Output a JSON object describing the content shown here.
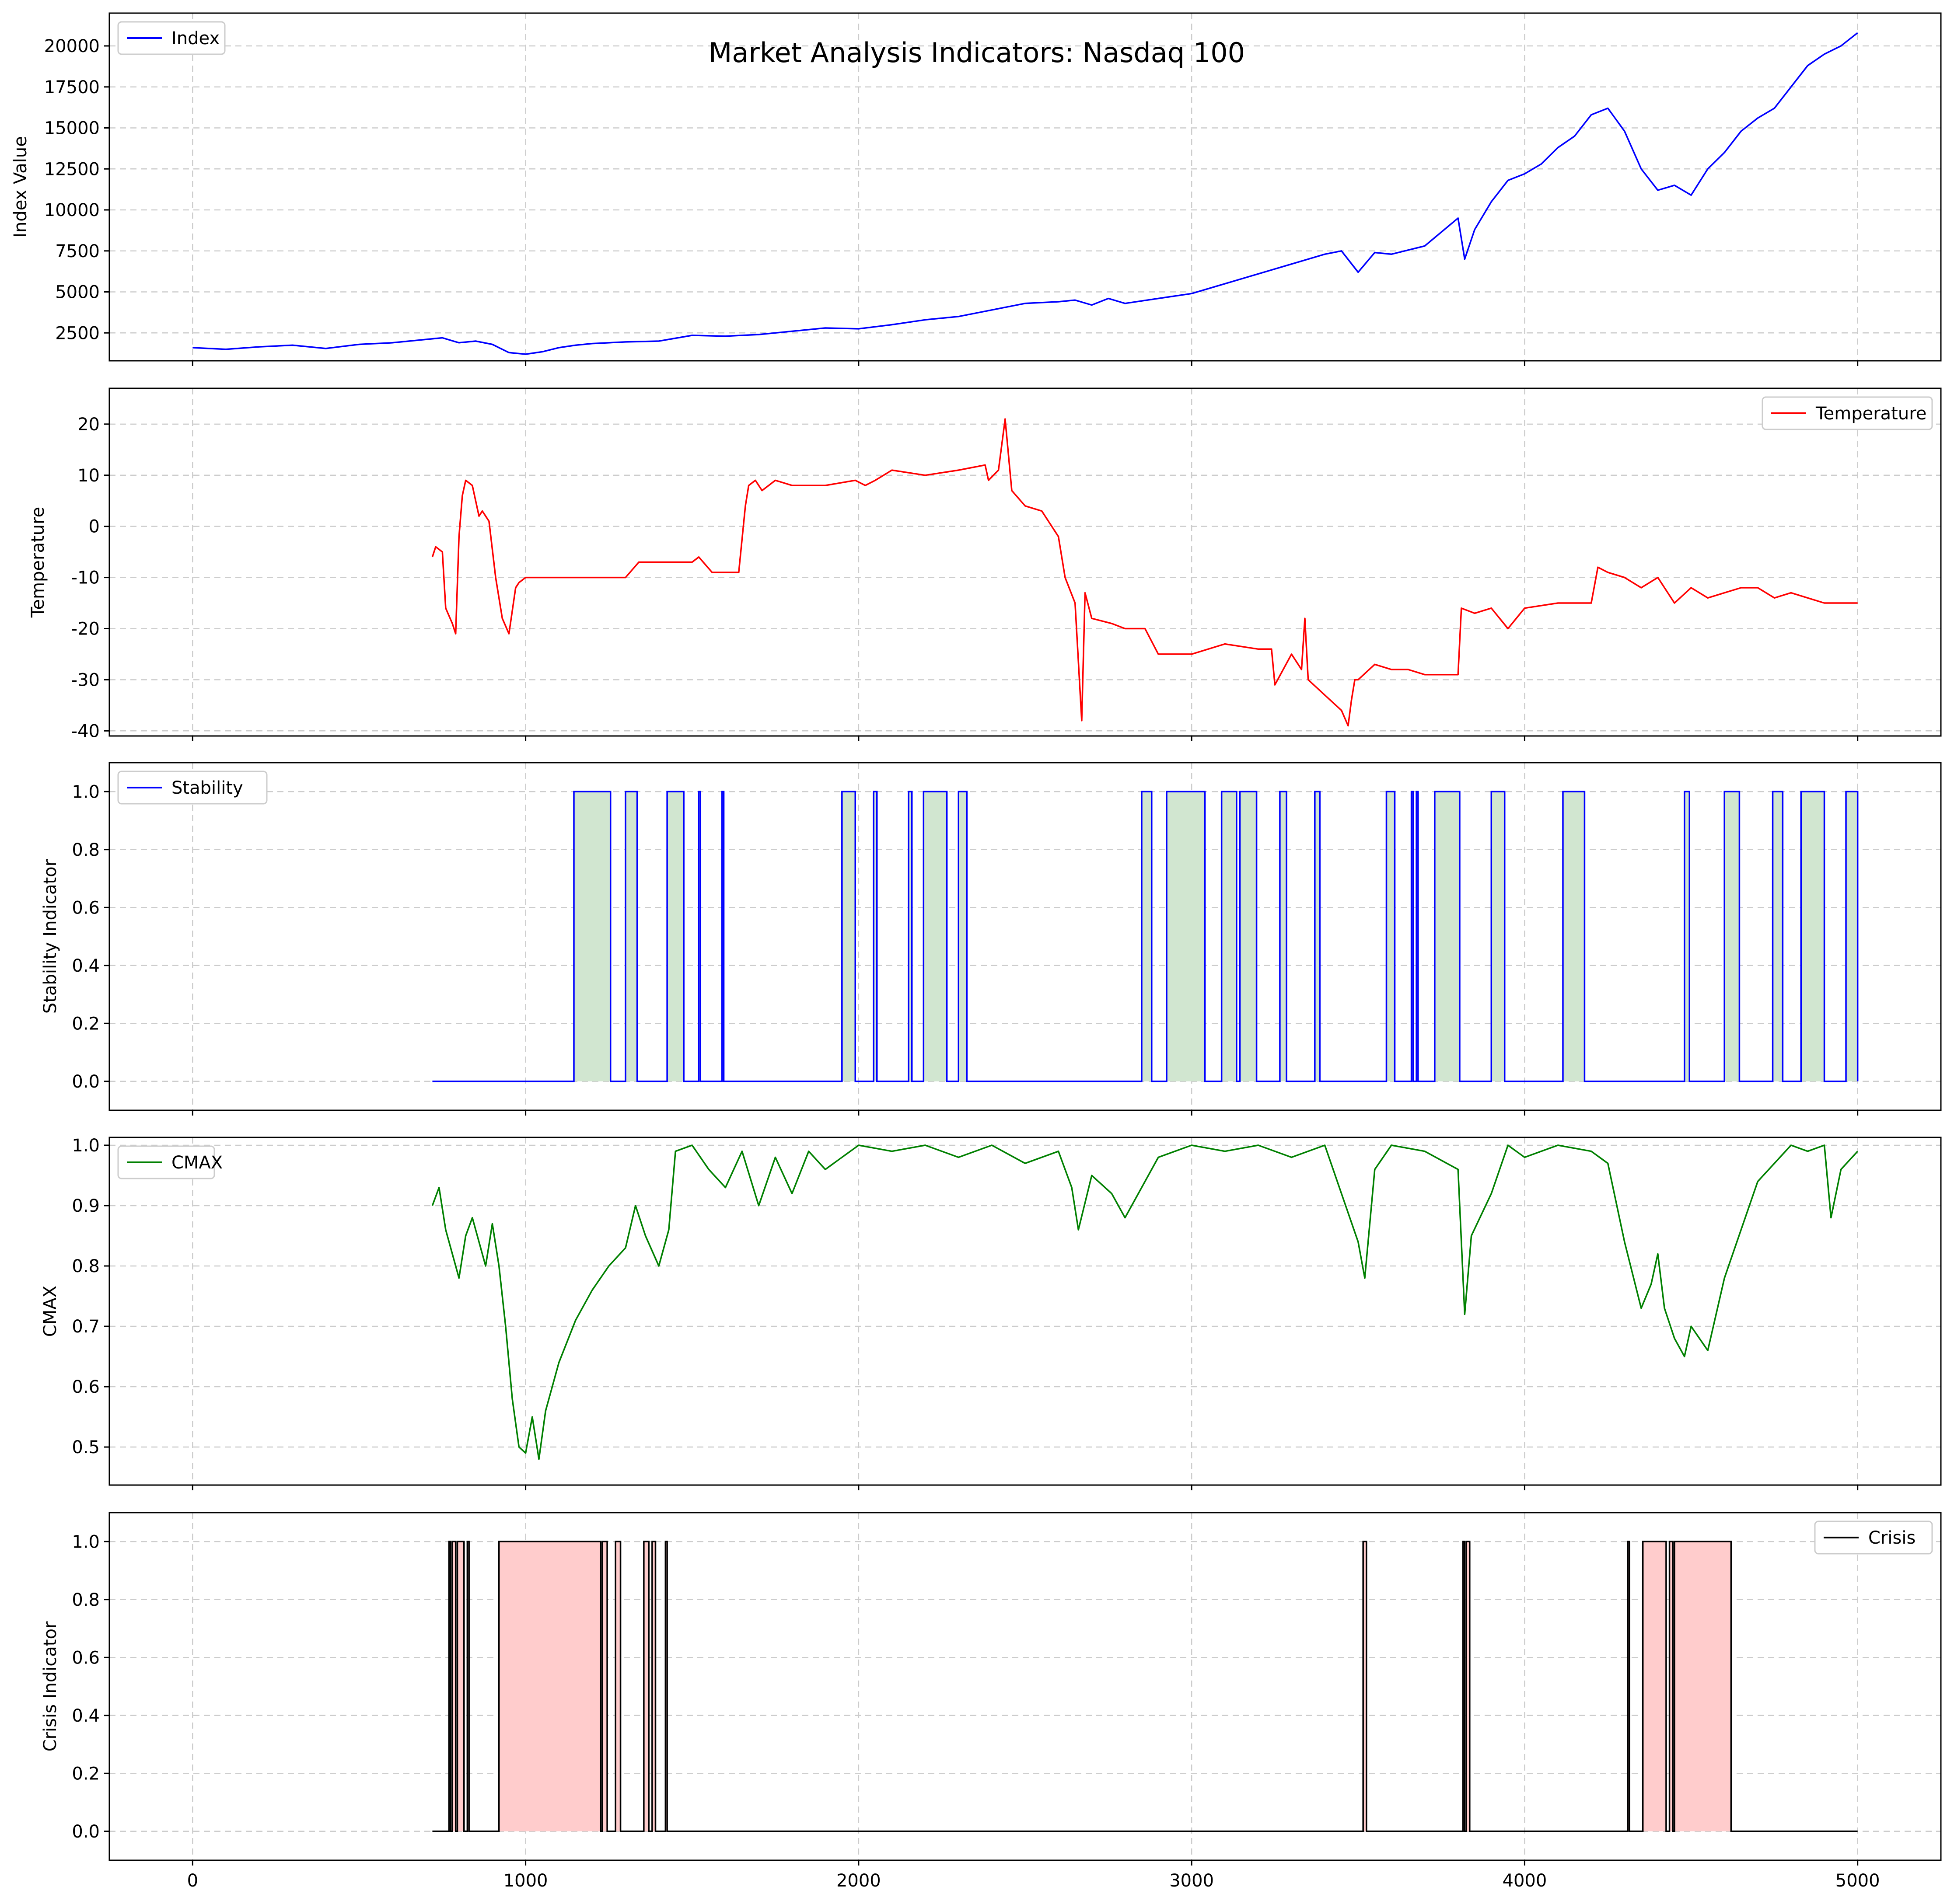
{
  "figure": {
    "title": "Market Analysis Indicators: Nasdaq 100"
  },
  "chart_data": [
    {
      "id": "index",
      "type": "line",
      "title": "Market Analysis Indicators: Nasdaq 100",
      "xlabel": "",
      "ylabel": "Index Value",
      "xlim": [
        -250,
        5250
      ],
      "ylim": [
        800,
        22000
      ],
      "xticks": [
        0,
        1000,
        2000,
        3000,
        4000,
        5000
      ],
      "yticks": [
        2500,
        5000,
        7500,
        10000,
        12500,
        15000,
        17500,
        20000
      ],
      "grid": true,
      "legend": "top-left",
      "series": [
        {
          "name": "Index",
          "color": "#0000ff",
          "x": [
            0,
            100,
            200,
            300,
            400,
            500,
            600,
            700,
            750,
            800,
            850,
            900,
            950,
            1000,
            1050,
            1100,
            1150,
            1200,
            1300,
            1400,
            1500,
            1600,
            1700,
            1800,
            1900,
            2000,
            2100,
            2200,
            2300,
            2400,
            2500,
            2600,
            2650,
            2700,
            2750,
            2800,
            2900,
            3000,
            3100,
            3200,
            3300,
            3400,
            3450,
            3500,
            3550,
            3600,
            3700,
            3800,
            3820,
            3850,
            3900,
            3950,
            4000,
            4050,
            4100,
            4150,
            4200,
            4250,
            4300,
            4350,
            4400,
            4450,
            4500,
            4550,
            4600,
            4650,
            4700,
            4750,
            4800,
            4850,
            4900,
            4950,
            5000
          ],
          "y": [
            1600,
            1500,
            1650,
            1750,
            1550,
            1800,
            1900,
            2100,
            2200,
            1900,
            2000,
            1800,
            1300,
            1200,
            1350,
            1600,
            1750,
            1850,
            1950,
            2000,
            2350,
            2300,
            2400,
            2600,
            2800,
            2750,
            3000,
            3300,
            3500,
            3900,
            4300,
            4400,
            4500,
            4200,
            4600,
            4300,
            4600,
            4900,
            5500,
            6100,
            6700,
            7300,
            7500,
            6200,
            7400,
            7300,
            7800,
            9500,
            7000,
            8800,
            10500,
            11800,
            12200,
            12800,
            13800,
            14500,
            15800,
            16200,
            14800,
            12500,
            11200,
            11500,
            10900,
            12500,
            13500,
            14800,
            15600,
            16200,
            17500,
            18800,
            19500,
            20000,
            20800
          ]
        }
      ]
    },
    {
      "id": "temperature",
      "type": "line",
      "xlabel": "",
      "ylabel": "Temperature",
      "xlim": [
        -250,
        5250
      ],
      "ylim": [
        -41,
        27
      ],
      "xticks": [
        0,
        1000,
        2000,
        3000,
        4000,
        5000
      ],
      "yticks": [
        -40,
        -30,
        -20,
        -10,
        0,
        10,
        20
      ],
      "grid": true,
      "legend": "top-right",
      "series": [
        {
          "name": "Temperature",
          "color": "#ff0000",
          "x": [
            720,
            730,
            750,
            760,
            780,
            790,
            800,
            810,
            820,
            840,
            860,
            870,
            890,
            910,
            930,
            950,
            970,
            980,
            1000,
            1050,
            1100,
            1200,
            1300,
            1340,
            1400,
            1500,
            1520,
            1560,
            1600,
            1640,
            1660,
            1670,
            1690,
            1710,
            1730,
            1750,
            1800,
            1900,
            1990,
            2020,
            2050,
            2100,
            2200,
            2300,
            2380,
            2390,
            2420,
            2440,
            2450,
            2460,
            2500,
            2550,
            2600,
            2620,
            2650,
            2670,
            2680,
            2700,
            2760,
            2800,
            2860,
            2900,
            2950,
            3000,
            3100,
            3200,
            3240,
            3250,
            3300,
            3330,
            3340,
            3350,
            3400,
            3450,
            3470,
            3480,
            3490,
            3500,
            3550,
            3600,
            3650,
            3700,
            3800,
            3810,
            3850,
            3900,
            3950,
            4000,
            4100,
            4200,
            4220,
            4250,
            4300,
            4350,
            4400,
            4450,
            4500,
            4550,
            4600,
            4650,
            4700,
            4750,
            4800,
            4850,
            4900,
            4950,
            5000
          ],
          "y": [
            -6,
            -4,
            -5,
            -16,
            -19,
            -21,
            -2,
            6,
            9,
            8,
            2,
            3,
            1,
            -10,
            -18,
            -21,
            -12,
            -11,
            -10,
            -10,
            -10,
            -10,
            -10,
            -7,
            -7,
            -7,
            -6,
            -9,
            -9,
            -9,
            4,
            8,
            9,
            7,
            8,
            9,
            8,
            8,
            9,
            8,
            9,
            11,
            10,
            11,
            12,
            9,
            11,
            21,
            14,
            7,
            4,
            3,
            -2,
            -10,
            -15,
            -38,
            -13,
            -18,
            -19,
            -20,
            -20,
            -25,
            -25,
            -25,
            -23,
            -24,
            -24,
            -31,
            -25,
            -28,
            -18,
            -30,
            -33,
            -36,
            -39,
            -34,
            -30,
            -30,
            -27,
            -28,
            -28,
            -29,
            -29,
            -16,
            -17,
            -16,
            -20,
            -16,
            -15,
            -15,
            -8,
            -9,
            -10,
            -12,
            -10,
            -15,
            -12,
            -14,
            -13,
            -12,
            -12,
            -14,
            -13,
            -14,
            -15,
            -15,
            -15
          ]
        }
      ]
    },
    {
      "id": "stability",
      "type": "area",
      "xlabel": "",
      "ylabel": "Stability Indicator",
      "xlim": [
        -250,
        5250
      ],
      "ylim": [
        -0.1,
        1.1
      ],
      "xticks": [
        0,
        1000,
        2000,
        3000,
        4000,
        5000
      ],
      "yticks": [
        0.0,
        0.2,
        0.4,
        0.6,
        0.8,
        1.0
      ],
      "grid": true,
      "legend": "top-left",
      "series": [
        {
          "name": "Stability",
          "color": "#0000ff",
          "fill": "#d1e6d0",
          "x_start": 720,
          "x_end": 5000,
          "intervals_on": [
            [
              1145,
              1255
            ],
            [
              1300,
              1335
            ],
            [
              1425,
              1475
            ],
            [
              1520,
              1525
            ],
            [
              1590,
              1595
            ],
            [
              1950,
              1990
            ],
            [
              2045,
              2055
            ],
            [
              2150,
              2160
            ],
            [
              2195,
              2265
            ],
            [
              2300,
              2325
            ],
            [
              2850,
              2880
            ],
            [
              2925,
              3040
            ],
            [
              3090,
              3135
            ],
            [
              3145,
              3195
            ],
            [
              3265,
              3285
            ],
            [
              3370,
              3385
            ],
            [
              3585,
              3610
            ],
            [
              3660,
              3665
            ],
            [
              3675,
              3680
            ],
            [
              3730,
              3805
            ],
            [
              3900,
              3940
            ],
            [
              4115,
              4180
            ],
            [
              4480,
              4495
            ],
            [
              4600,
              4645
            ],
            [
              4745,
              4775
            ],
            [
              4830,
              4900
            ],
            [
              4965,
              5000
            ]
          ]
        }
      ]
    },
    {
      "id": "cmax",
      "type": "line",
      "xlabel": "",
      "ylabel": "CMAX",
      "xlim": [
        -250,
        5250
      ],
      "ylim": [
        0.437,
        1.013
      ],
      "xticks": [
        0,
        1000,
        2000,
        3000,
        4000,
        5000
      ],
      "yticks": [
        0.5,
        0.6,
        0.7,
        0.8,
        0.9,
        1.0
      ],
      "grid": true,
      "legend": "top-left",
      "series": [
        {
          "name": "CMAX",
          "color": "#008000",
          "x": [
            720,
            740,
            760,
            780,
            800,
            820,
            840,
            860,
            880,
            900,
            920,
            940,
            960,
            980,
            1000,
            1020,
            1040,
            1060,
            1080,
            1100,
            1150,
            1200,
            1250,
            1300,
            1330,
            1360,
            1400,
            1430,
            1450,
            1500,
            1550,
            1600,
            1650,
            1700,
            1750,
            1800,
            1850,
            1900,
            1950,
            2000,
            2100,
            2200,
            2300,
            2400,
            2500,
            2600,
            2640,
            2660,
            2700,
            2760,
            2800,
            2900,
            3000,
            3100,
            3200,
            3300,
            3400,
            3450,
            3500,
            3520,
            3550,
            3600,
            3700,
            3800,
            3820,
            3840,
            3900,
            3950,
            4000,
            4100,
            4200,
            4250,
            4300,
            4350,
            4380,
            4400,
            4420,
            4450,
            4480,
            4500,
            4550,
            4600,
            4650,
            4700,
            4750,
            4800,
            4850,
            4900,
            4920,
            4950,
            5000
          ],
          "y": [
            0.9,
            0.93,
            0.86,
            0.82,
            0.78,
            0.85,
            0.88,
            0.84,
            0.8,
            0.87,
            0.8,
            0.7,
            0.58,
            0.5,
            0.49,
            0.55,
            0.48,
            0.56,
            0.6,
            0.64,
            0.71,
            0.76,
            0.8,
            0.83,
            0.9,
            0.85,
            0.8,
            0.86,
            0.99,
            1.0,
            0.96,
            0.93,
            0.99,
            0.9,
            0.98,
            0.92,
            0.99,
            0.96,
            0.98,
            1.0,
            0.99,
            1.0,
            0.98,
            1.0,
            0.97,
            0.99,
            0.93,
            0.86,
            0.95,
            0.92,
            0.88,
            0.98,
            1.0,
            0.99,
            1.0,
            0.98,
            1.0,
            0.92,
            0.84,
            0.78,
            0.96,
            1.0,
            0.99,
            0.96,
            0.72,
            0.85,
            0.92,
            1.0,
            0.98,
            1.0,
            0.99,
            0.97,
            0.84,
            0.73,
            0.77,
            0.82,
            0.73,
            0.68,
            0.65,
            0.7,
            0.66,
            0.78,
            0.86,
            0.94,
            0.97,
            1.0,
            0.99,
            1.0,
            0.88,
            0.96,
            0.99
          ]
        }
      ]
    },
    {
      "id": "crisis",
      "type": "area",
      "xlabel": "",
      "ylabel": "Crisis Indicator",
      "xlim": [
        -250,
        5250
      ],
      "ylim": [
        -0.1,
        1.1
      ],
      "xticks": [
        0,
        1000,
        2000,
        3000,
        4000,
        5000
      ],
      "yticks": [
        0.0,
        0.2,
        0.4,
        0.6,
        0.8,
        1.0
      ],
      "grid": true,
      "legend": "top-right",
      "series": [
        {
          "name": "Crisis",
          "color": "#000000",
          "fill": "#ffcccc",
          "x_start": 720,
          "x_end": 5000,
          "intervals_on": [
            [
              770,
              775
            ],
            [
              780,
              790
            ],
            [
              795,
              815
            ],
            [
              825,
              830
            ],
            [
              920,
              1225
            ],
            [
              1230,
              1245
            ],
            [
              1270,
              1285
            ],
            [
              1355,
              1370
            ],
            [
              1380,
              1390
            ],
            [
              1420,
              1425
            ],
            [
              3515,
              3525
            ],
            [
              3815,
              3820
            ],
            [
              3825,
              3835
            ],
            [
              4310,
              4315
            ],
            [
              4355,
              4425
            ],
            [
              4435,
              4445
            ],
            [
              4450,
              4620
            ]
          ]
        }
      ]
    }
  ]
}
